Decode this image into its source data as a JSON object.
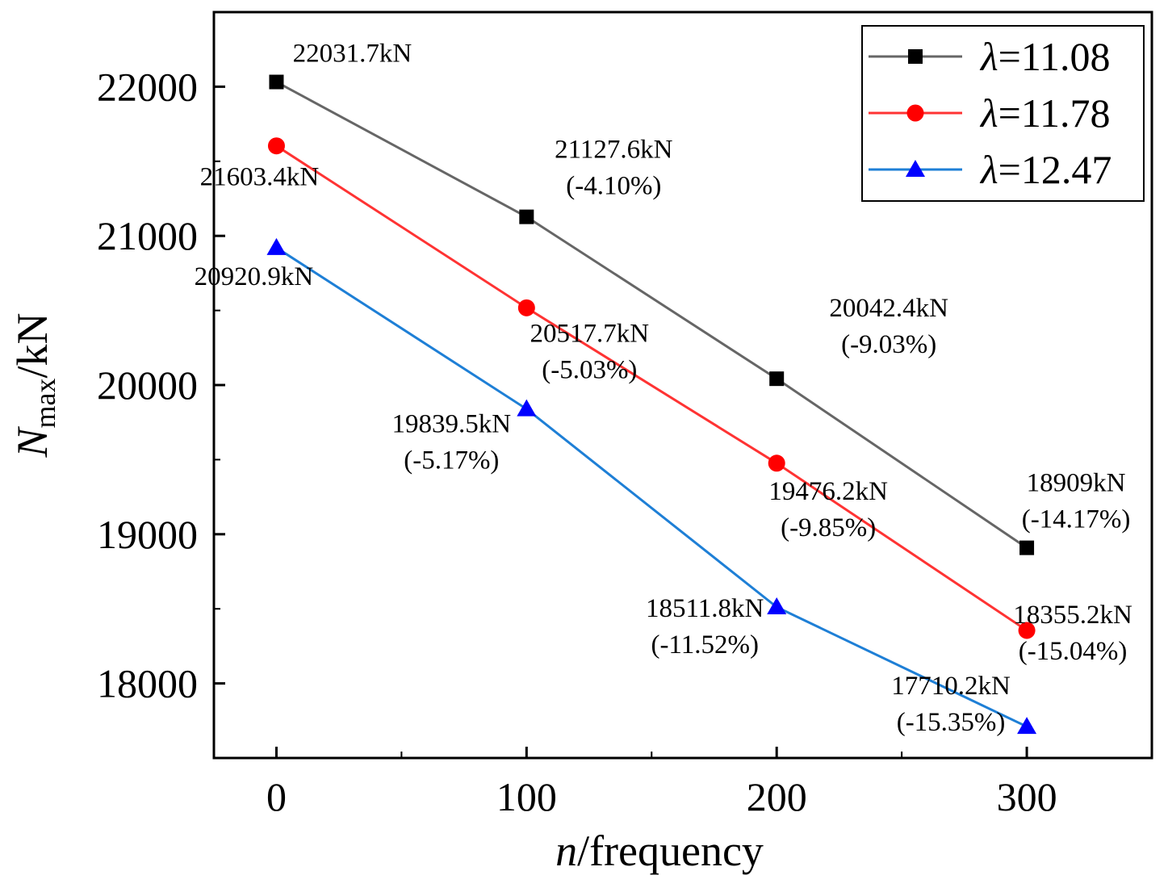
{
  "chart_data": {
    "type": "line",
    "x": [
      0,
      100,
      200,
      300
    ],
    "xlabel_italic": "n",
    "xlabel_rest": "/frequency",
    "ylabel_main": "N",
    "ylabel_sub": "max",
    "ylabel_rest": "/kN",
    "xlim": [
      -25,
      350
    ],
    "ylim": [
      17500,
      22500
    ],
    "xticks": [
      0,
      100,
      200,
      300
    ],
    "xminor": [
      50,
      150,
      250
    ],
    "yticks": [
      18000,
      19000,
      20000,
      21000,
      22000
    ],
    "yminor": [
      18500,
      19500,
      20500,
      21500
    ],
    "legend_position": "top-right",
    "series": [
      {
        "name": "λ=11.08",
        "lambda_symbol": "λ",
        "lambda_value": "=11.08",
        "color": "#666666",
        "marker_color": "#000000",
        "marker": "square",
        "values": [
          22031.7,
          21127.6,
          20042.4,
          18909
        ],
        "labels": [
          {
            "value": "22031.7kN",
            "pct": ""
          },
          {
            "value": "21127.6kN",
            "pct": "(-4.10%)"
          },
          {
            "value": "20042.4kN",
            "pct": "(-9.03%)"
          },
          {
            "value": "18909kN",
            "pct": "(-14.17%)"
          }
        ]
      },
      {
        "name": "λ=11.78",
        "lambda_symbol": "λ",
        "lambda_value": "=11.78",
        "color": "#ff3333",
        "marker_color": "#ff0000",
        "marker": "circle",
        "values": [
          21603.4,
          20517.7,
          19476.2,
          18355.2
        ],
        "labels": [
          {
            "value": "21603.4kN",
            "pct": ""
          },
          {
            "value": "20517.7kN",
            "pct": "(-5.03%)"
          },
          {
            "value": "19476.2kN",
            "pct": "(-9.85%)"
          },
          {
            "value": "18355.2kN",
            "pct": "(-15.04%)"
          }
        ]
      },
      {
        "name": "λ=12.47",
        "lambda_symbol": "λ",
        "lambda_value": "=12.47",
        "color": "#1e7fd6",
        "marker_color": "#0000ff",
        "marker": "triangle",
        "values": [
          20920.9,
          19839.5,
          18511.8,
          17710.2
        ],
        "labels": [
          {
            "value": "20920.9kN",
            "pct": ""
          },
          {
            "value": "19839.5kN",
            "pct": "(-5.17%)"
          },
          {
            "value": "18511.8kN",
            "pct": "(-11.52%)"
          },
          {
            "value": "17710.2kN",
            "pct": "(-15.35%)"
          }
        ]
      }
    ]
  }
}
